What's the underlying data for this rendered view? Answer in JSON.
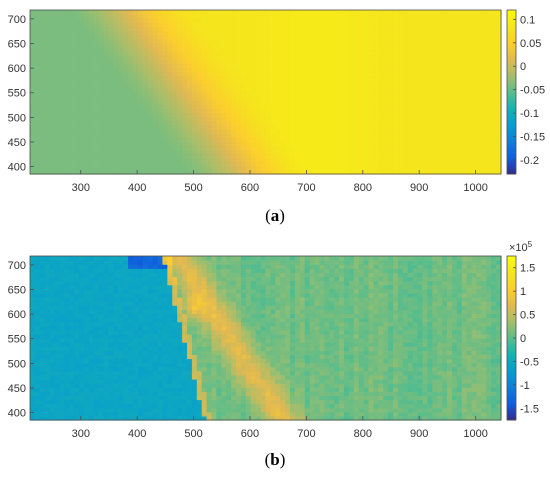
{
  "chart_data": [
    {
      "type": "heatmap",
      "panel": "a",
      "caption": {
        "open": "(",
        "letter": "a",
        "close": ")"
      },
      "xlim": [
        210,
        1045
      ],
      "ylim": [
        385,
        718
      ],
      "xticks": [
        300,
        400,
        500,
        600,
        700,
        800,
        900,
        1000
      ],
      "yticks": [
        400,
        450,
        500,
        550,
        600,
        650,
        700
      ],
      "clim": [
        -0.23,
        0.12
      ],
      "colorbar": {
        "ticks": [
          0.1,
          0.05,
          0,
          -0.05,
          -0.1,
          -0.15,
          -0.2
        ],
        "tick_labels": [
          "0.1",
          "0.05",
          "0",
          "-0.05",
          "-0.1",
          "-0.15",
          "-0.2"
        ]
      },
      "description_values": {
        "left_region_value": -0.04,
        "right_region_value": 0.085,
        "transition_top_x": 430,
        "transition_bottom_x": 640,
        "peak_value": 0.09,
        "peak_x": 720
      },
      "colormap": "parula"
    },
    {
      "type": "heatmap",
      "panel": "b",
      "caption": {
        "open": "(",
        "letter": "b",
        "close": ")"
      },
      "xlim": [
        210,
        1045
      ],
      "ylim": [
        385,
        718
      ],
      "xticks": [
        300,
        400,
        500,
        600,
        700,
        800,
        900,
        1000
      ],
      "yticks": [
        400,
        450,
        500,
        550,
        600,
        650,
        700
      ],
      "clim": [
        -1.75,
        1.75
      ],
      "colorbar": {
        "ticks": [
          1.5,
          1,
          0.5,
          0,
          -0.5,
          -1,
          -1.5
        ],
        "tick_labels": [
          "1.5",
          "1",
          "0.5",
          "0",
          "-0.5",
          "-1",
          "-1.5"
        ],
        "multiplier_base": "×10",
        "multiplier_exp": "5"
      },
      "description_values": {
        "background_value": 0.1,
        "left_region_value": -0.55,
        "boundary_top_x": 445,
        "boundary_bottom_x": 520,
        "band_value": 0.75,
        "band_top_x": 455,
        "band_bottom_x": 640,
        "spot_value": 1.25,
        "spot_x": 500,
        "spot_y": 615
      },
      "colormap": "parula"
    }
  ]
}
